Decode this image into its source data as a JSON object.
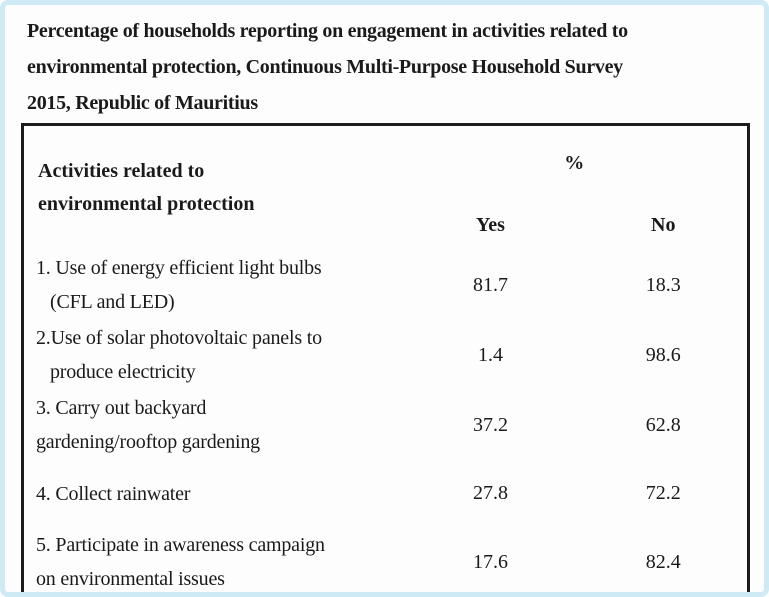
{
  "title": {
    "full": "Percentage of households reporting on engagement in activities related to environmental protection, Continuous Multi-Purpose Household Survey 2015, Republic of Mauritius",
    "lines": [
      "Percentage of households reporting on engagement in activities related to",
      "environmental protection, Continuous Multi-Purpose Household Survey",
      "2015, Republic of Mauritius"
    ]
  },
  "table": {
    "header": {
      "activities_line1": "Activities related to",
      "activities_line2": "environmental protection",
      "percent_label": "%",
      "yes_label": "Yes",
      "no_label": "No"
    },
    "rows": [
      {
        "line1": "1. Use of energy efficient light bulbs",
        "line2": "(CFL and LED)",
        "yes": "81.7",
        "no": "18.3"
      },
      {
        "line1": "2.Use of solar photovoltaic panels to",
        "line2": "produce electricity",
        "yes": "1.4",
        "no": "98.6"
      },
      {
        "line1": "3. Carry out backyard",
        "line2": "gardening/rooftop gardening",
        "yes": "37.2",
        "no": "62.8"
      },
      {
        "line1": "4. Collect rainwater",
        "line2": "",
        "yes": "27.8",
        "no": "72.2"
      },
      {
        "line1": "5. Participate in awareness campaign",
        "line2": "on environmental issues",
        "yes": "17.6",
        "no": "82.4"
      }
    ]
  },
  "chart_data": {
    "type": "table",
    "title": "Percentage of households reporting on engagement in activities related to environmental protection, Continuous Multi-Purpose Household Survey 2015, Republic of Mauritius",
    "columns": [
      "Activities related to environmental protection",
      "Yes",
      "No"
    ],
    "unit": "%",
    "categories": [
      "Use of energy efficient light bulbs (CFL and LED)",
      "Use of solar photovoltaic panels to produce electricity",
      "Carry out backyard gardening/rooftop gardening",
      "Collect rainwater",
      "Participate in awareness campaign on environmental issues"
    ],
    "series": [
      {
        "name": "Yes",
        "values": [
          81.7,
          1.4,
          37.2,
          27.8,
          17.6
        ]
      },
      {
        "name": "No",
        "values": [
          18.3,
          98.6,
          62.8,
          72.2,
          82.4
        ]
      }
    ]
  },
  "colors": {
    "frame_border": "#cdeaf5",
    "background": "#fdfdfd",
    "table_border": "#1c1c1c",
    "text": "#1a1a1a"
  }
}
